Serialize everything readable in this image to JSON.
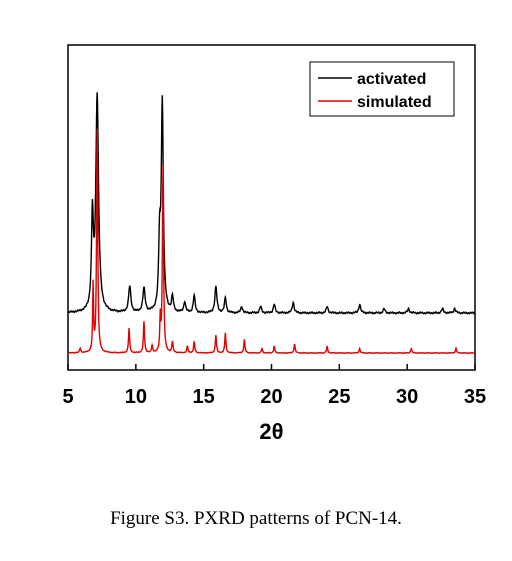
{
  "chart_data": {
    "type": "line",
    "xlabel": "2θ",
    "ylabel": "",
    "xlim": [
      5,
      35
    ],
    "xticks": [
      5,
      10,
      15,
      20,
      25,
      30,
      35
    ],
    "grid": false,
    "legend": {
      "placement": "top-right"
    },
    "series": [
      {
        "name": "activated",
        "color": "#000000",
        "peaks": [
          {
            "x": 6.8,
            "h": 0.42,
            "w": 0.08
          },
          {
            "x": 7.15,
            "h": 1.0,
            "w": 0.12
          },
          {
            "x": 9.55,
            "h": 0.12,
            "w": 0.1
          },
          {
            "x": 10.6,
            "h": 0.11,
            "w": 0.1
          },
          {
            "x": 11.75,
            "h": 0.3,
            "w": 0.08
          },
          {
            "x": 11.95,
            "h": 0.96,
            "w": 0.09
          },
          {
            "x": 12.7,
            "h": 0.07,
            "w": 0.08
          },
          {
            "x": 13.6,
            "h": 0.05,
            "w": 0.08
          },
          {
            "x": 14.3,
            "h": 0.08,
            "w": 0.08
          },
          {
            "x": 15.9,
            "h": 0.12,
            "w": 0.09
          },
          {
            "x": 16.6,
            "h": 0.07,
            "w": 0.08
          },
          {
            "x": 17.8,
            "h": 0.03,
            "w": 0.08
          },
          {
            "x": 19.2,
            "h": 0.03,
            "w": 0.08
          },
          {
            "x": 20.2,
            "h": 0.04,
            "w": 0.08
          },
          {
            "x": 21.6,
            "h": 0.05,
            "w": 0.08
          },
          {
            "x": 24.1,
            "h": 0.03,
            "w": 0.08
          },
          {
            "x": 26.5,
            "h": 0.04,
            "w": 0.08
          },
          {
            "x": 28.3,
            "h": 0.02,
            "w": 0.08
          },
          {
            "x": 30.1,
            "h": 0.02,
            "w": 0.08
          },
          {
            "x": 32.6,
            "h": 0.02,
            "w": 0.08
          },
          {
            "x": 33.5,
            "h": 0.02,
            "w": 0.08
          }
        ]
      },
      {
        "name": "simulated",
        "color": "#e00000",
        "peaks": [
          {
            "x": 5.9,
            "h": 0.02,
            "w": 0.05
          },
          {
            "x": 6.85,
            "h": 0.3,
            "w": 0.04
          },
          {
            "x": 7.15,
            "h": 1.0,
            "w": 0.05
          },
          {
            "x": 9.5,
            "h": 0.11,
            "w": 0.05
          },
          {
            "x": 10.6,
            "h": 0.14,
            "w": 0.05
          },
          {
            "x": 11.2,
            "h": 0.03,
            "w": 0.05
          },
          {
            "x": 11.8,
            "h": 0.15,
            "w": 0.04
          },
          {
            "x": 12.0,
            "h": 0.84,
            "w": 0.05
          },
          {
            "x": 12.7,
            "h": 0.05,
            "w": 0.05
          },
          {
            "x": 13.8,
            "h": 0.03,
            "w": 0.05
          },
          {
            "x": 14.3,
            "h": 0.05,
            "w": 0.05
          },
          {
            "x": 15.9,
            "h": 0.08,
            "w": 0.05
          },
          {
            "x": 16.6,
            "h": 0.09,
            "w": 0.05
          },
          {
            "x": 18.0,
            "h": 0.06,
            "w": 0.05
          },
          {
            "x": 19.3,
            "h": 0.02,
            "w": 0.05
          },
          {
            "x": 20.2,
            "h": 0.03,
            "w": 0.05
          },
          {
            "x": 21.7,
            "h": 0.04,
            "w": 0.05
          },
          {
            "x": 24.1,
            "h": 0.03,
            "w": 0.05
          },
          {
            "x": 26.5,
            "h": 0.02,
            "w": 0.05
          },
          {
            "x": 30.3,
            "h": 0.02,
            "w": 0.05
          },
          {
            "x": 33.6,
            "h": 0.02,
            "w": 0.05
          }
        ]
      }
    ]
  },
  "caption": "Figure S3. PXRD patterns of PCN-14."
}
